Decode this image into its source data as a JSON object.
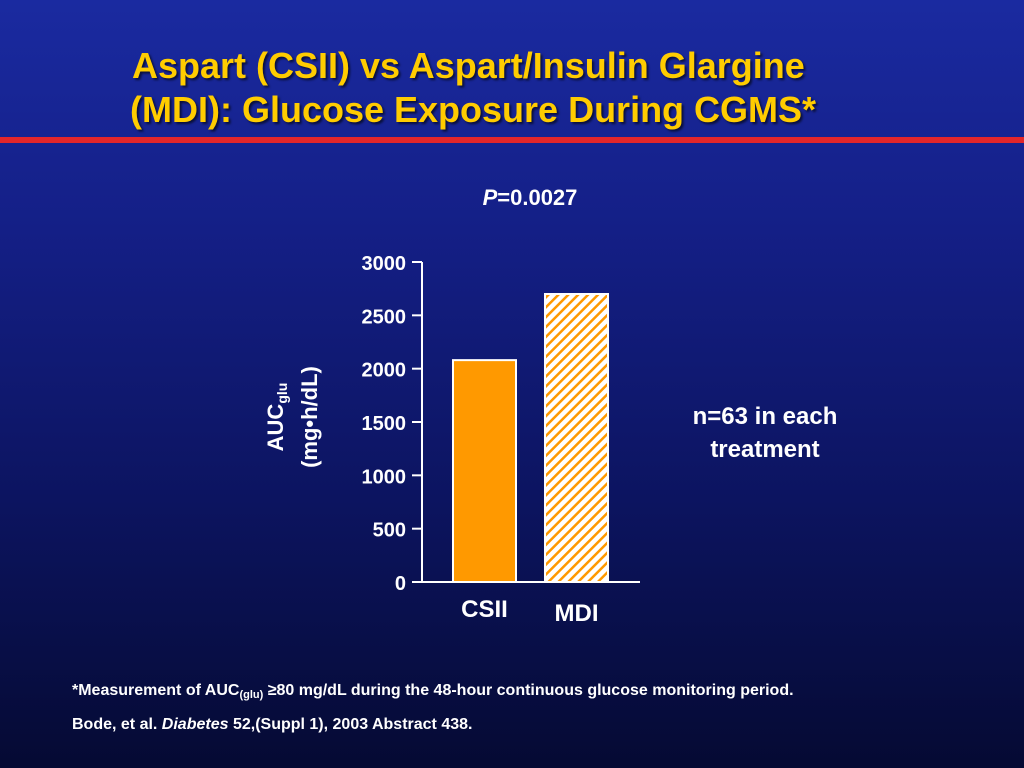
{
  "slide": {
    "title_line1": "Aspart (CSII) vs Aspart/Insulin Glargine",
    "title_line2": "(MDI): Glucose Exposure During CGMS*",
    "p_label": "P",
    "p_value": "=0.0027",
    "note_line1": "n=63 in each",
    "note_line2": "treatment",
    "footnote_pre": "*Measurement of AUC",
    "footnote_sub": "(glu)",
    "footnote_post": " ≥80 mg/dL during the 48-hour continuous glucose monitoring period.",
    "citation_pre": "Bode, et al. ",
    "citation_journal": "Diabetes",
    "citation_post": " 52,(Suppl 1), 2003 Abstract 438."
  },
  "colors": {
    "title": "#ffcc00",
    "rule": "#e3262a",
    "bar_csii": "#ff9900",
    "bar_mdi_hatch": "#ff9900",
    "text": "#ffffff"
  },
  "chart_data": {
    "type": "bar",
    "categories": [
      "CSII",
      "MDI"
    ],
    "values": [
      2080,
      2700
    ],
    "ylabel_main": "AUC",
    "ylabel_sub": "glu",
    "ylabel_units": "(mg•h/dL)",
    "ylim": [
      0,
      3000
    ],
    "yticks": [
      "0",
      "500",
      "1000",
      "1500",
      "2000",
      "2500",
      "3000"
    ],
    "bar_styles": [
      "solid",
      "hatched"
    ],
    "grid": false,
    "legend": "none"
  }
}
